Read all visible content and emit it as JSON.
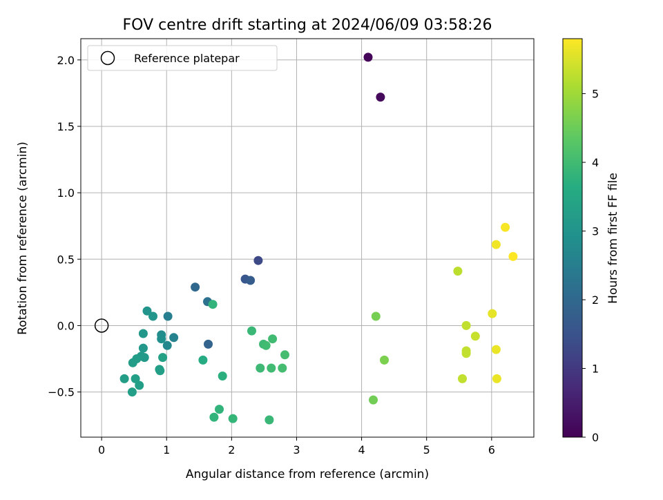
{
  "chart_data": {
    "type": "scatter",
    "title": "FOV centre drift starting at 2024/06/09 03:58:26",
    "xlabel": "Angular distance from reference (arcmin)",
    "ylabel": "Rotation from reference (arcmin)",
    "xlim": [
      -0.32,
      6.65
    ],
    "ylim": [
      -0.84,
      2.16
    ],
    "x_ticks": [
      0,
      1,
      2,
      3,
      4,
      5,
      6
    ],
    "y_ticks": [
      -0.5,
      0.0,
      0.5,
      1.0,
      1.5,
      2.0
    ],
    "x_tick_labels": [
      "0",
      "1",
      "2",
      "3",
      "4",
      "5",
      "6"
    ],
    "y_tick_labels": [
      "−0.5",
      "0.0",
      "0.5",
      "1.0",
      "1.5",
      "2.0"
    ],
    "grid": true,
    "legend": {
      "placement": "top-left",
      "entries": [
        {
          "label": "Reference platepar",
          "marker": "open-circle"
        }
      ]
    },
    "reference_point": {
      "x": 0,
      "y": 0
    },
    "colorbar": {
      "label": "Hours from first FF file",
      "colormap": "viridis",
      "min": 0,
      "max": 5.8,
      "ticks": [
        0,
        1,
        2,
        3,
        4,
        5
      ],
      "tick_labels": [
        "0",
        "1",
        "2",
        "3",
        "4",
        "5"
      ]
    },
    "series": [
      {
        "values": [
          {
            "x": 4.1,
            "y": 2.02,
            "c": 0.05
          },
          {
            "x": 4.29,
            "y": 1.72,
            "c": 0.15
          },
          {
            "x": 2.41,
            "y": 0.49,
            "c": 1.3
          },
          {
            "x": 2.21,
            "y": 0.35,
            "c": 1.6
          },
          {
            "x": 2.29,
            "y": 0.34,
            "c": 1.7
          },
          {
            "x": 1.44,
            "y": 0.29,
            "c": 2.0
          },
          {
            "x": 1.63,
            "y": 0.18,
            "c": 2.2
          },
          {
            "x": 1.64,
            "y": -0.14,
            "c": 1.9
          },
          {
            "x": 1.02,
            "y": 0.07,
            "c": 2.5
          },
          {
            "x": 1.11,
            "y": -0.09,
            "c": 2.6
          },
          {
            "x": 1.01,
            "y": -0.15,
            "c": 2.7
          },
          {
            "x": 0.92,
            "y": -0.07,
            "c": 2.8
          },
          {
            "x": 0.92,
            "y": -0.1,
            "c": 2.9
          },
          {
            "x": 0.7,
            "y": 0.11,
            "c": 3.0
          },
          {
            "x": 0.79,
            "y": 0.07,
            "c": 3.05
          },
          {
            "x": 0.64,
            "y": -0.06,
            "c": 3.1
          },
          {
            "x": 0.64,
            "y": -0.17,
            "c": 3.1
          },
          {
            "x": 0.61,
            "y": -0.23,
            "c": 3.15
          },
          {
            "x": 0.66,
            "y": -0.24,
            "c": 3.15
          },
          {
            "x": 0.54,
            "y": -0.25,
            "c": 3.2
          },
          {
            "x": 0.48,
            "y": -0.28,
            "c": 3.2
          },
          {
            "x": 0.35,
            "y": -0.4,
            "c": 3.25
          },
          {
            "x": 0.52,
            "y": -0.4,
            "c": 3.3
          },
          {
            "x": 0.58,
            "y": -0.45,
            "c": 3.3
          },
          {
            "x": 0.47,
            "y": -0.5,
            "c": 3.3
          },
          {
            "x": 0.89,
            "y": -0.33,
            "c": 3.3
          },
          {
            "x": 0.9,
            "y": -0.34,
            "c": 3.3
          },
          {
            "x": 0.94,
            "y": -0.24,
            "c": 3.35
          },
          {
            "x": 1.71,
            "y": 0.16,
            "c": 3.8
          },
          {
            "x": 1.56,
            "y": -0.26,
            "c": 3.6
          },
          {
            "x": 1.86,
            "y": -0.38,
            "c": 3.7
          },
          {
            "x": 1.81,
            "y": -0.63,
            "c": 3.8
          },
          {
            "x": 1.73,
            "y": -0.69,
            "c": 3.8
          },
          {
            "x": 2.02,
            "y": -0.7,
            "c": 3.85
          },
          {
            "x": 2.58,
            "y": -0.71,
            "c": 3.9
          },
          {
            "x": 2.31,
            "y": -0.04,
            "c": 3.9
          },
          {
            "x": 2.49,
            "y": -0.14,
            "c": 3.95
          },
          {
            "x": 2.53,
            "y": -0.15,
            "c": 4.0
          },
          {
            "x": 2.63,
            "y": -0.1,
            "c": 4.0
          },
          {
            "x": 2.82,
            "y": -0.22,
            "c": 4.05
          },
          {
            "x": 2.44,
            "y": -0.32,
            "c": 3.95
          },
          {
            "x": 2.61,
            "y": -0.32,
            "c": 4.0
          },
          {
            "x": 2.78,
            "y": -0.32,
            "c": 4.05
          },
          {
            "x": 4.22,
            "y": 0.07,
            "c": 4.6
          },
          {
            "x": 4.35,
            "y": -0.26,
            "c": 4.65
          },
          {
            "x": 4.18,
            "y": -0.56,
            "c": 4.55
          },
          {
            "x": 5.48,
            "y": 0.41,
            "c": 5.25
          },
          {
            "x": 5.61,
            "y": 0.0,
            "c": 5.3
          },
          {
            "x": 5.75,
            "y": -0.08,
            "c": 5.35
          },
          {
            "x": 5.61,
            "y": -0.19,
            "c": 5.3
          },
          {
            "x": 5.61,
            "y": -0.21,
            "c": 5.3
          },
          {
            "x": 5.55,
            "y": -0.4,
            "c": 5.3
          },
          {
            "x": 6.21,
            "y": 0.74,
            "c": 5.75
          },
          {
            "x": 6.07,
            "y": 0.61,
            "c": 5.7
          },
          {
            "x": 6.33,
            "y": 0.52,
            "c": 5.8
          },
          {
            "x": 6.01,
            "y": 0.09,
            "c": 5.6
          },
          {
            "x": 6.07,
            "y": -0.18,
            "c": 5.65
          },
          {
            "x": 6.08,
            "y": -0.4,
            "c": 5.65
          }
        ]
      }
    ]
  }
}
